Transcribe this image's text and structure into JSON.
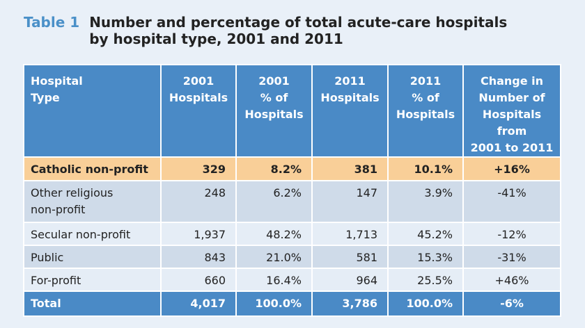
{
  "title": {
    "label": "Table 1",
    "line1": "Number and percentage of total acute-care hospitals",
    "line2": "by hospital type, 2001 and 2011"
  },
  "headers": [
    [
      "Hospital",
      "Type"
    ],
    [
      "2001",
      "Hospitals"
    ],
    [
      "2001",
      "% of",
      "Hospitals"
    ],
    [
      "2011",
      "Hospitals"
    ],
    [
      "2011",
      "% of",
      "Hospitals"
    ],
    [
      "Change in",
      "Number of",
      "Hospitals",
      "from",
      "2001 to 2011"
    ]
  ],
  "rows": [
    {
      "type": [
        "Catholic non-profit"
      ],
      "h2001": "329",
      "p2001": "8.2%",
      "h2011": "381",
      "p2011": "10.1%",
      "change": "+16%"
    },
    {
      "type": [
        "Other religious",
        "non-profit"
      ],
      "h2001": "248",
      "p2001": "6.2%",
      "h2011": "147",
      "p2011": "3.9%",
      "change": "-41%"
    },
    {
      "type": [
        "Secular non-profit"
      ],
      "h2001": "1,937",
      "p2001": "48.2%",
      "h2011": "1,713",
      "p2011": "45.2%",
      "change": "-12%"
    },
    {
      "type": [
        "Public"
      ],
      "h2001": "843",
      "p2001": "21.0%",
      "h2011": "581",
      "p2011": "15.3%",
      "change": "-31%"
    },
    {
      "type": [
        "For-profit"
      ],
      "h2001": "660",
      "p2001": "16.4%",
      "h2011": "964",
      "p2011": "25.5%",
      "change": "+46%"
    },
    {
      "type": [
        "Total"
      ],
      "h2001": "4,017",
      "p2001": "100.0%",
      "h2011": "3,786",
      "p2011": "100.0%",
      "change": "-6%"
    }
  ],
  "colors": {
    "header_bg": "#4a8ac6",
    "highlight_row": "#f9cf98",
    "alt_row": "#cfdbe9",
    "plain_row": "#e5edf6",
    "title_label": "#4a90c8",
    "page_bg": "#e9f0f8"
  }
}
